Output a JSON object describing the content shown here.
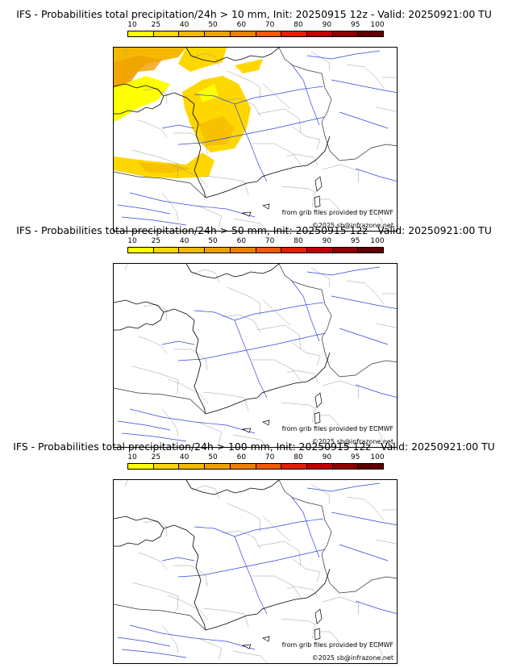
{
  "legend": {
    "ticks": [
      "10",
      "25",
      "40",
      "50",
      "60",
      "70",
      "80",
      "90",
      "95",
      "100"
    ],
    "colors": [
      "#ffff00",
      "#ffd700",
      "#f5b800",
      "#f0a000",
      "#ee8000",
      "#f05a00",
      "#e02000",
      "#c00000",
      "#900000",
      "#600000"
    ]
  },
  "credits": {
    "source": "from grib files provided by ECMWF",
    "copyright": "©2025 sb@infrazone.net"
  },
  "panels": [
    {
      "title": "IFS - Probabilities total precipitation/24h > 10 mm, Init: 20250915 12z - Valid: 20250921:00 TU",
      "threshold_mm": 10,
      "has_precip": true
    },
    {
      "title": "IFS - Probabilities total precipitation/24h > 50 mm, Init: 20250915 12z - Valid: 20250921:00 TU",
      "threshold_mm": 50,
      "has_precip": false
    },
    {
      "title": "IFS - Probabilities total precipitation/24h > 100 mm, Init: 20250915 12z - Valid: 20250921:00 TU",
      "threshold_mm": 100,
      "has_precip": false
    }
  ]
}
